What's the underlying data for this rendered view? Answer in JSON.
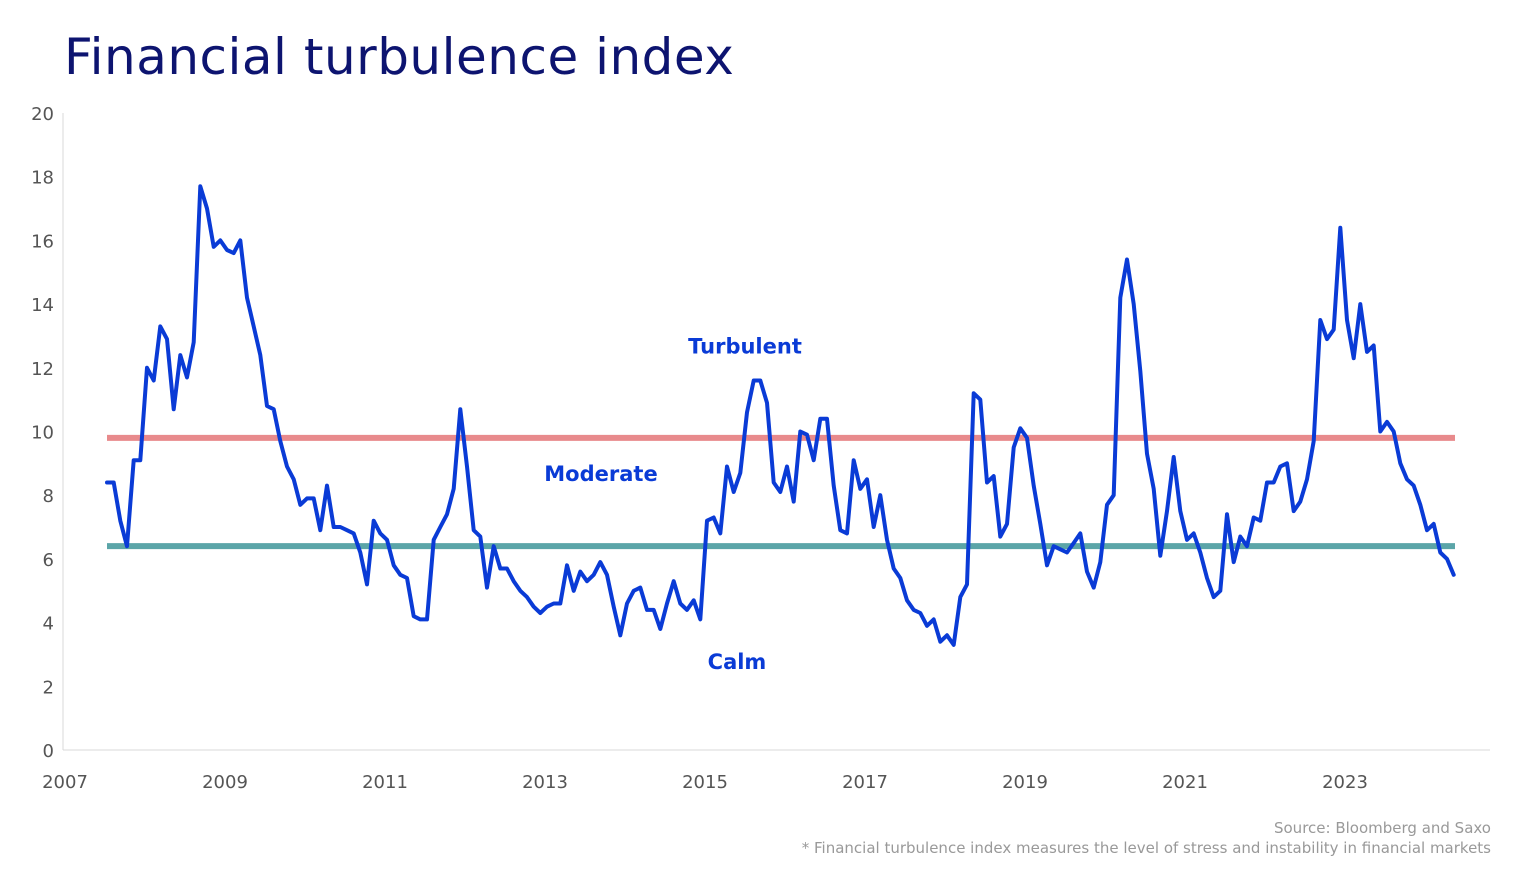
{
  "chart_data": {
    "type": "line",
    "title": "Financial turbulence index",
    "xlabel": "",
    "ylabel": "",
    "x_ticks": [
      "2007",
      "2009",
      "2011",
      "2013",
      "2015",
      "2017",
      "2019",
      "2021",
      "2023"
    ],
    "y_ticks": [
      "0",
      "2",
      "4",
      "6",
      "8",
      "10",
      "12",
      "14",
      "16",
      "18",
      "20"
    ],
    "ylim": [
      0,
      20
    ],
    "xlim": [
      "2007-01",
      "2024-10"
    ],
    "grid": false,
    "legend": "none",
    "series": [
      {
        "start": "2007-07",
        "frequency": "monthly",
        "color": "#0a3bd6",
        "values": [
          8.4,
          8.4,
          7.2,
          6.4,
          9.1,
          9.1,
          12.0,
          11.6,
          13.3,
          12.9,
          10.7,
          12.4,
          11.7,
          12.8,
          17.7,
          17.0,
          15.8,
          16.0,
          15.7,
          15.6,
          16.0,
          14.2,
          13.3,
          12.4,
          10.8,
          10.7,
          9.7,
          8.9,
          8.5,
          7.7,
          7.9,
          7.9,
          6.9,
          8.3,
          7.0,
          7.0,
          6.9,
          6.8,
          6.2,
          5.2,
          7.2,
          6.8,
          6.6,
          5.8,
          5.5,
          5.4,
          4.2,
          4.1,
          4.1,
          6.6,
          7.0,
          7.4,
          8.2,
          10.7,
          8.9,
          6.9,
          6.7,
          5.1,
          6.4,
          5.7,
          5.7,
          5.3,
          5.0,
          4.8,
          4.5,
          4.3,
          4.5,
          4.6,
          4.6,
          5.8,
          5.0,
          5.6,
          5.3,
          5.5,
          5.9,
          5.5,
          4.5,
          3.6,
          4.6,
          5.0,
          5.1,
          4.4,
          4.4,
          3.8,
          4.6,
          5.3,
          4.6,
          4.4,
          4.7,
          4.1,
          7.2,
          7.3,
          6.8,
          8.9,
          8.1,
          8.7,
          10.6,
          11.6,
          11.6,
          10.9,
          8.4,
          8.1,
          8.9,
          7.8,
          10.0,
          9.9,
          9.1,
          10.4,
          10.4,
          8.3,
          6.9,
          6.8,
          9.1,
          8.2,
          8.5,
          7.0,
          8.0,
          6.6,
          5.7,
          5.4,
          4.7,
          4.4,
          4.3,
          3.9,
          4.1,
          3.4,
          3.6,
          3.3,
          4.8,
          5.2,
          11.2,
          11.0,
          8.4,
          8.6,
          6.7,
          7.1,
          9.5,
          10.1,
          9.8,
          8.3,
          7.1,
          5.8,
          6.4,
          6.3,
          6.2,
          6.5,
          6.8,
          5.6,
          5.1,
          5.9,
          7.7,
          8.0,
          14.2,
          15.4,
          14.0,
          11.9,
          9.3,
          8.2,
          6.1,
          7.5,
          9.2,
          7.5,
          6.6,
          6.8,
          6.2,
          5.4,
          4.8,
          5.0,
          7.4,
          5.9,
          6.7,
          6.4,
          7.3,
          7.2,
          8.4,
          8.4,
          8.9,
          9.0,
          7.5,
          7.8,
          8.5,
          9.7,
          13.5,
          12.9,
          13.2,
          16.4,
          13.5,
          12.3,
          14.0,
          12.5,
          12.7,
          10.0,
          10.3,
          10.0,
          9.0,
          8.5,
          8.3,
          7.7,
          6.9,
          7.1,
          6.2,
          6.0,
          5.5
        ]
      }
    ],
    "thresholds": [
      {
        "value": 9.8,
        "color": "#e88a8c"
      },
      {
        "value": 6.4,
        "color": "#5ba5a8"
      }
    ],
    "annotations": [
      {
        "text": "Turbulent",
        "x": "2015.5",
        "y": 12.7
      },
      {
        "text": "Moderate",
        "x": "2013.7",
        "y": 8.7
      },
      {
        "text": "Calm",
        "x": "2015.4",
        "y": 2.8
      }
    ]
  },
  "footer": {
    "source": "Source: Bloomberg and Saxo",
    "note": "* Financial turbulence index measures the level of stress and instability in financial markets"
  }
}
